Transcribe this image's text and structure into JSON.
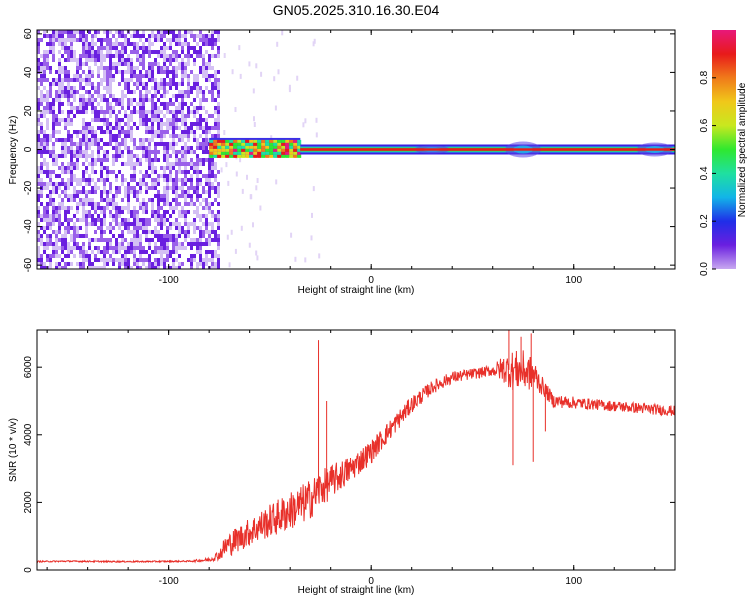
{
  "figure": {
    "title": "GN05.2025.310.16.30.E04"
  },
  "chart_data": [
    {
      "type": "heatmap",
      "title": "GN05.2025.310.16.30.E04",
      "xlabel": "Height of straight line (km)",
      "ylabel": "Frequency (Hz)",
      "xlim": [
        -165,
        150
      ],
      "ylim": [
        -62,
        62
      ],
      "xticks": [
        -100,
        0,
        100
      ],
      "yticks": [
        -60,
        -40,
        -20,
        0,
        20,
        40,
        60
      ],
      "grid": false,
      "colorbar": {
        "label": "Normalized spectral amplitude",
        "range": [
          0,
          1
        ],
        "ticks": [
          0.0,
          0.2,
          0.4,
          0.6,
          0.8
        ],
        "colormap": [
          "#ffffff",
          "#c8a8f0",
          "#6a1fe0",
          "#1f2ee8",
          "#12b5e8",
          "#1fe0a0",
          "#2fe82f",
          "#c8e81f",
          "#f0c81a",
          "#f07a1a",
          "#e81a1a",
          "#e8187a"
        ]
      },
      "description_regions": [
        {
          "x_range": [
            -165,
            -75
          ],
          "freq_range": [
            -62,
            62
          ],
          "amplitude": 0.05
        },
        {
          "x_range": [
            -80,
            -35
          ],
          "freq_range": [
            -4,
            6
          ],
          "amplitude": 0.5
        },
        {
          "x_range": [
            -35,
            150
          ],
          "freq_range": [
            -2,
            2
          ],
          "amplitude": 0.95
        }
      ]
    },
    {
      "type": "line",
      "xlabel": "Height of straight line (km)",
      "ylabel": "SNR (10 * v/v)",
      "xlim": [
        -165,
        150
      ],
      "ylim": [
        0,
        7100
      ],
      "xticks": [
        -100,
        0,
        100
      ],
      "yticks": [
        0,
        2000,
        4000,
        6000
      ],
      "grid": false,
      "line_color": "#e8302a",
      "series": [
        {
          "x": [
            -165,
            -150,
            -130,
            -110,
            -90,
            -80,
            -75,
            -72,
            -65,
            -55,
            -45,
            -35,
            -30,
            -25,
            -20,
            -10,
            0,
            10,
            20,
            30,
            40,
            50,
            60,
            65,
            70,
            75,
            80,
            85,
            90,
            100,
            110,
            120,
            130,
            140,
            150
          ],
          "y": [
            250,
            260,
            250,
            250,
            260,
            300,
            450,
            700,
            950,
            1300,
            1600,
            1900,
            2100,
            2400,
            2600,
            3000,
            3500,
            4200,
            4900,
            5400,
            5700,
            5800,
            5900,
            5950,
            5900,
            5900,
            5800,
            5400,
            5000,
            4950,
            4900,
            4850,
            4800,
            4750,
            4700
          ],
          "noise": [
            20,
            20,
            20,
            20,
            20,
            60,
            150,
            350,
            400,
            450,
            550,
            600,
            600,
            550,
            500,
            400,
            350,
            300,
            250,
            200,
            180,
            160,
            160,
            400,
            600,
            600,
            500,
            250,
            200,
            180,
            160,
            160,
            160,
            160,
            160
          ]
        }
      ],
      "spikes": [
        {
          "x": -26,
          "y": 6800
        },
        {
          "x": -22,
          "y": 5000
        },
        {
          "x": 68,
          "y": 7100
        },
        {
          "x": 70,
          "y": 3100
        },
        {
          "x": 74,
          "y": 6900
        },
        {
          "x": 79,
          "y": 7000
        },
        {
          "x": 80,
          "y": 3200
        },
        {
          "x": 86,
          "y": 4100
        }
      ]
    }
  ]
}
